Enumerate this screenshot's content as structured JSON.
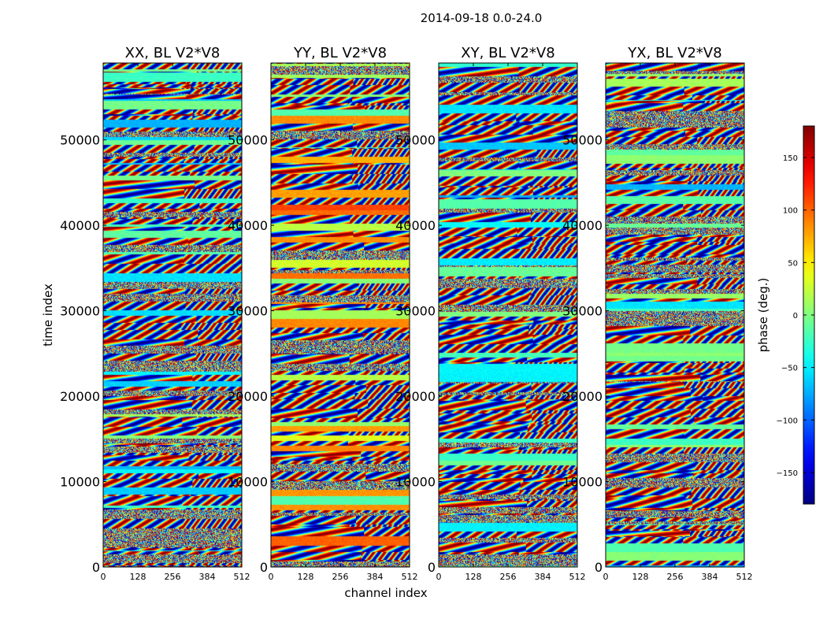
{
  "chart_data": {
    "type": "heatmap",
    "suptitle": "2014-09-18 0.0-24.0",
    "xlabel": "channel index",
    "ylabel": "time index",
    "colorbar_label": "phase (deg.)",
    "colormap": "jet",
    "colorbar_range": [
      -180,
      180
    ],
    "colorbar_ticks": [
      "−150",
      "−100",
      "−50",
      "0",
      "50",
      "100",
      "150"
    ],
    "colorbar_tick_values": [
      -150,
      -100,
      -50,
      0,
      50,
      100,
      150
    ],
    "xlim": [
      0,
      512
    ],
    "ylim": [
      0,
      59000
    ],
    "xticks": [
      "0",
      "128",
      "256",
      "384",
      "512"
    ],
    "xtick_values": [
      0,
      128,
      256,
      384,
      512
    ],
    "yticks": [
      "0",
      "10000",
      "20000",
      "30000",
      "40000",
      "50000"
    ],
    "ytick_values": [
      0,
      10000,
      20000,
      30000,
      40000,
      50000
    ],
    "panels": [
      {
        "title": "XX, BL V2*V8",
        "pol": "XX"
      },
      {
        "title": "YY, BL V2*V8",
        "pol": "YY"
      },
      {
        "title": "XY, BL V2*V8",
        "pol": "XY"
      },
      {
        "title": "YX, BL V2*V8",
        "pol": "YX"
      }
    ]
  }
}
